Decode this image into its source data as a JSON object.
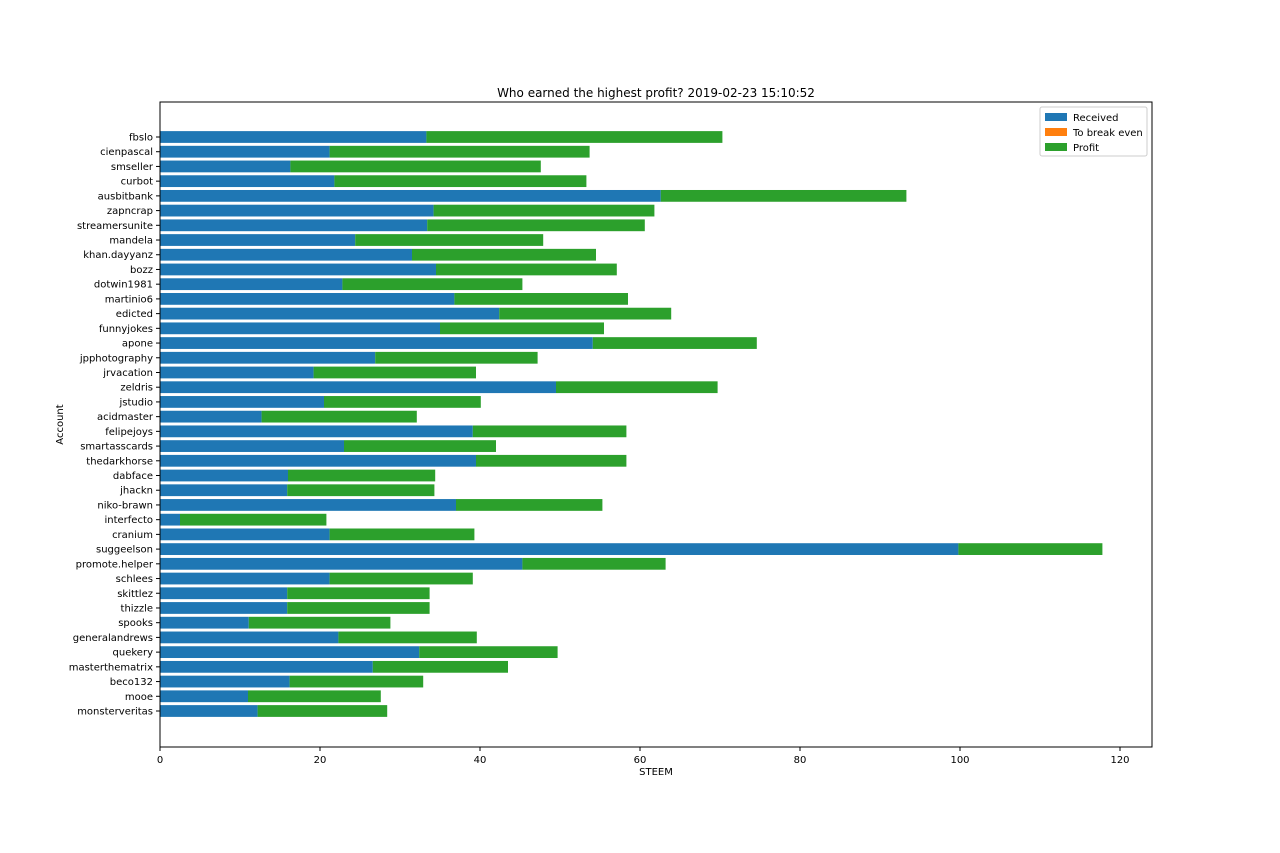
{
  "chart_data": {
    "type": "bar",
    "orientation": "horizontal",
    "stacked": true,
    "title": "Who earned the highest profit? 2019-02-23 15:10:52",
    "xlabel": "STEEM",
    "ylabel": "Account",
    "xlim": [
      0,
      124
    ],
    "xticks": [
      0,
      20,
      40,
      60,
      80,
      100,
      120
    ],
    "grid": false,
    "legend": "top-right",
    "categories": [
      "fbslo",
      "cienpascal",
      "smseller",
      "curbot",
      "ausbitbank",
      "zapncrap",
      "streamersunite",
      "mandela",
      "khan.dayyanz",
      "bozz",
      "dotwin1981",
      "martinio6",
      "edicted",
      "funnyjokes",
      "apone",
      "jpphotography",
      "jrvacation",
      "zeldris",
      "jstudio",
      "acidmaster",
      "felipejoys",
      "smartasscards",
      "thedarkhorse",
      "dabface",
      "jhackn",
      "niko-brawn",
      "interfecto",
      "cranium",
      "suggeelson",
      "promote.helper",
      "schlees",
      "skittlez",
      "thizzle",
      "spooks",
      "generalandrews",
      "quekery",
      "masterthematrix",
      "beco132",
      "mooe",
      "monsterveritas"
    ],
    "series": [
      {
        "name": "Received",
        "color": "#1f77b4",
        "values": [
          33.3,
          21.2,
          16.3,
          21.8,
          62.6,
          34.2,
          33.4,
          24.4,
          31.5,
          34.5,
          22.8,
          36.8,
          42.4,
          35.0,
          54.1,
          26.9,
          19.2,
          49.5,
          20.5,
          12.7,
          39.1,
          23.0,
          39.5,
          16.0,
          15.9,
          37.0,
          2.5,
          21.2,
          99.8,
          45.3,
          21.2,
          15.9,
          15.9,
          11.1,
          22.3,
          32.4,
          26.6,
          16.2,
          11.0,
          12.2
        ]
      },
      {
        "name": "To break even",
        "color": "#ff7f0e",
        "values": [
          0,
          0,
          0,
          0,
          0,
          0,
          0,
          0,
          0,
          0,
          0,
          0,
          0,
          0,
          0,
          0,
          0,
          0,
          0,
          0,
          0,
          0,
          0,
          0,
          0,
          0,
          0,
          0,
          0,
          0,
          0,
          0,
          0,
          0,
          0,
          0,
          0,
          0,
          0,
          0
        ]
      },
      {
        "name": "Profit",
        "color": "#2ca02c",
        "values": [
          37.0,
          32.5,
          31.3,
          31.5,
          30.7,
          27.6,
          27.2,
          23.5,
          23.0,
          22.6,
          22.5,
          21.7,
          21.5,
          20.5,
          20.5,
          20.3,
          20.3,
          20.2,
          19.6,
          19.4,
          19.2,
          19.0,
          18.8,
          18.4,
          18.4,
          18.3,
          18.3,
          18.1,
          18.0,
          17.9,
          17.9,
          17.8,
          17.8,
          17.7,
          17.3,
          17.3,
          16.9,
          16.7,
          16.6,
          16.2
        ]
      }
    ]
  }
}
